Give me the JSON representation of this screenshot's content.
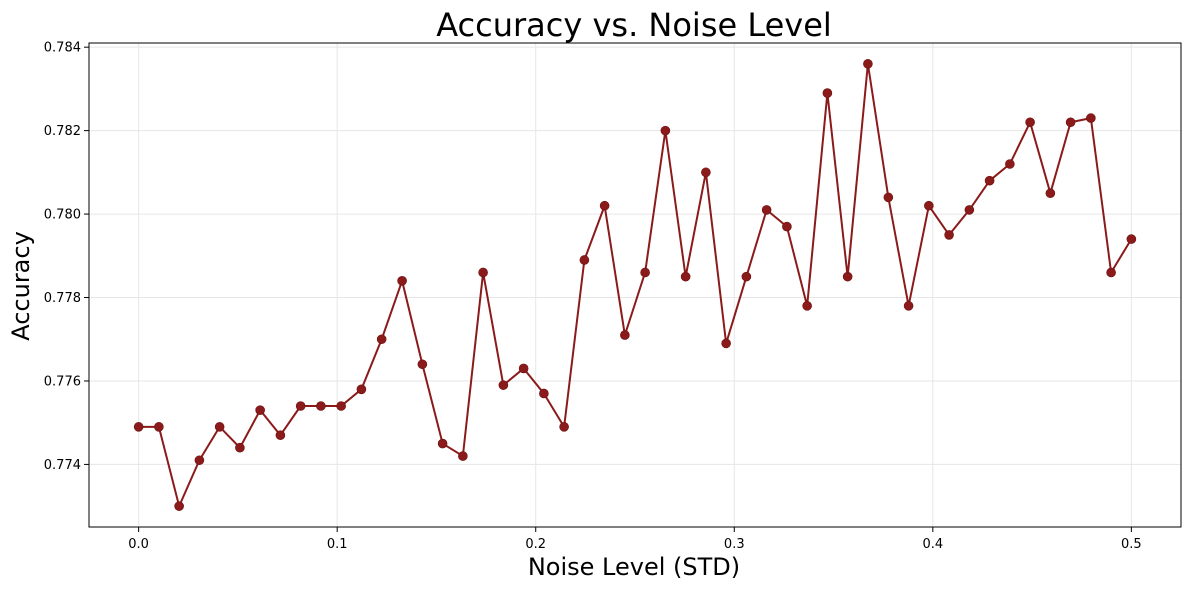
{
  "chart_data": {
    "type": "line",
    "title": "Accuracy vs. Noise Level",
    "xlabel": "Noise Level (STD)",
    "ylabel": "Accuracy",
    "xlim": [
      -0.025,
      0.525
    ],
    "ylim": [
      0.7725,
      0.7841
    ],
    "x_ticks": [
      0.0,
      0.1,
      0.2,
      0.3,
      0.4,
      0.5
    ],
    "x_tick_labels": [
      "0.0",
      "0.1",
      "0.2",
      "0.3",
      "0.4",
      "0.5"
    ],
    "y_ticks": [
      0.774,
      0.776,
      0.778,
      0.78,
      0.782,
      0.784
    ],
    "y_tick_labels": [
      "0.774",
      "0.776",
      "0.778",
      "0.780",
      "0.782",
      "0.784"
    ],
    "grid": true,
    "line_color": "#8b1a1a",
    "series": [
      {
        "x": [
          0.0,
          0.0102,
          0.0204,
          0.0306,
          0.0408,
          0.051,
          0.0612,
          0.0714,
          0.0816,
          0.0918,
          0.102,
          0.1122,
          0.1224,
          0.1327,
          0.1429,
          0.1531,
          0.1633,
          0.1735,
          0.1837,
          0.1939,
          0.2041,
          0.2143,
          0.2245,
          0.2347,
          0.2449,
          0.2551,
          0.2653,
          0.2755,
          0.2857,
          0.2959,
          0.3061,
          0.3163,
          0.3265,
          0.3367,
          0.3469,
          0.3571,
          0.3673,
          0.3776,
          0.3878,
          0.398,
          0.4082,
          0.4184,
          0.4286,
          0.4388,
          0.449,
          0.4592,
          0.4694,
          0.4796,
          0.4898,
          0.5
        ],
        "values": [
          0.7749,
          0.7749,
          0.773,
          0.7741,
          0.7749,
          0.7744,
          0.7753,
          0.7747,
          0.7754,
          0.7754,
          0.7754,
          0.7758,
          0.777,
          0.7784,
          0.7764,
          0.7745,
          0.7742,
          0.7786,
          0.7759,
          0.7763,
          0.7757,
          0.7749,
          0.7789,
          0.7802,
          0.7771,
          0.7786,
          0.782,
          0.7785,
          0.781,
          0.7769,
          0.7785,
          0.7801,
          0.7797,
          0.7778,
          0.7829,
          0.7785,
          0.7836,
          0.7804,
          0.7778,
          0.7802,
          0.7795,
          0.7801,
          0.7808,
          0.7812,
          0.7822,
          0.7805,
          0.7822,
          0.7823,
          0.7786,
          0.7794
        ]
      }
    ]
  }
}
